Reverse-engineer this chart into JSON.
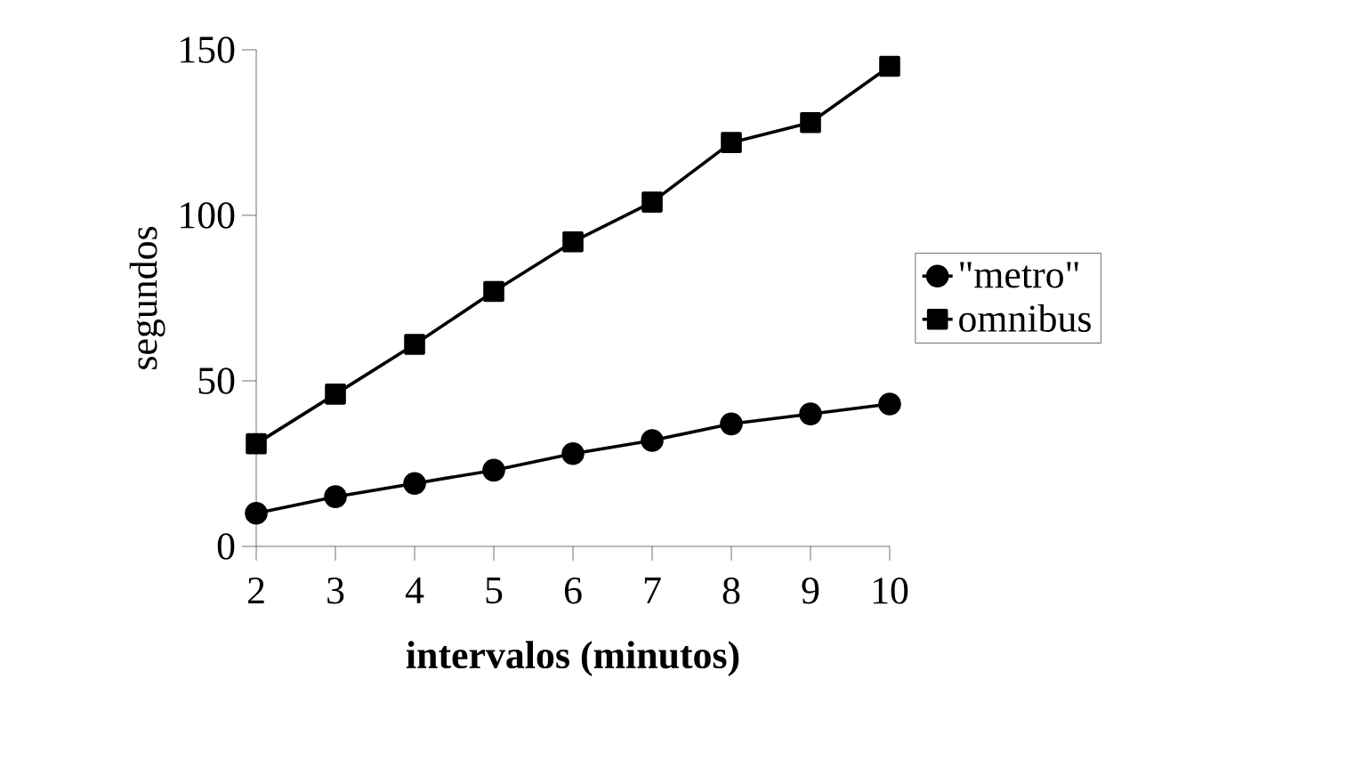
{
  "chart_data": {
    "type": "line",
    "xlabel": "intervalos (minutos)",
    "ylabel": "segundos",
    "x": [
      2,
      3,
      4,
      5,
      6,
      7,
      8,
      9,
      10
    ],
    "series": [
      {
        "name": "\"metro\"",
        "color": "#000000",
        "marker": "circle",
        "values": [
          10,
          15,
          19,
          23,
          28,
          32,
          37,
          40,
          43
        ]
      },
      {
        "name": "omnibus",
        "color": "#000000",
        "marker": "square",
        "values": [
          31,
          46,
          61,
          77,
          92,
          104,
          122,
          128,
          145
        ]
      }
    ],
    "xlim": [
      2,
      10
    ],
    "xticks": [
      2,
      3,
      4,
      5,
      6,
      7,
      8,
      9,
      10
    ],
    "ylim": [
      0,
      150
    ],
    "yticks": [
      0,
      50,
      100,
      150
    ],
    "grid": false,
    "legend": "right",
    "line_style": "solid"
  }
}
